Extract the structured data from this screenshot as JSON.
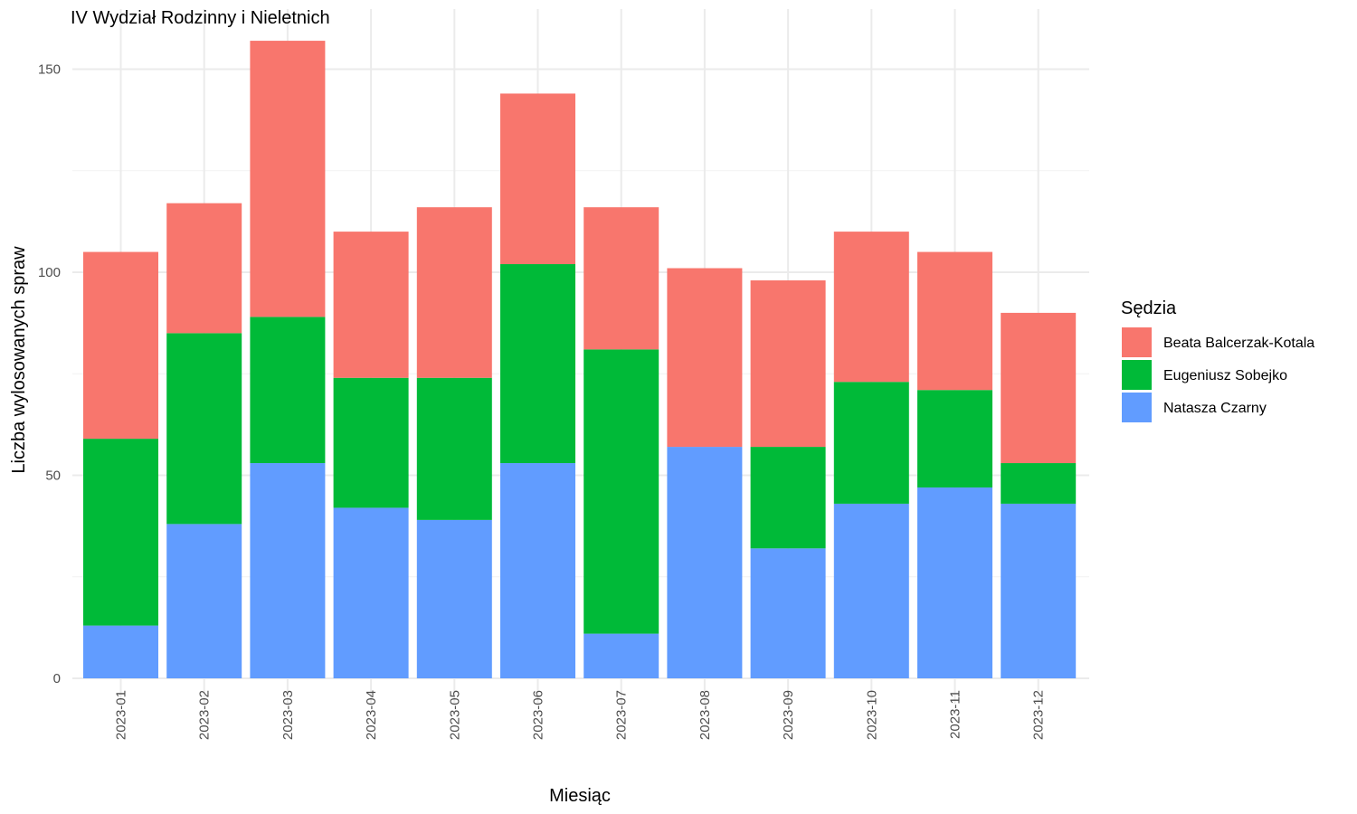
{
  "chart_data": {
    "type": "bar",
    "stacked": true,
    "title": "IV Wydział Rodzinny i Nieletnich",
    "xlabel": "Miesiąc",
    "ylabel": "Liczba wylosowanych spraw",
    "ylim": [
      0,
      160
    ],
    "yticks": [
      0,
      50,
      100,
      150
    ],
    "grid": true,
    "legend_title": "Sędzia",
    "legend_position": "right",
    "categories": [
      "2023-01",
      "2023-02",
      "2023-03",
      "2023-04",
      "2023-05",
      "2023-06",
      "2023-07",
      "2023-08",
      "2023-09",
      "2023-10",
      "2023-11",
      "2023-12"
    ],
    "series": [
      {
        "name": "Natasza Czarny",
        "color": "#619CFF",
        "values": [
          13,
          38,
          53,
          42,
          39,
          53,
          11,
          57,
          32,
          43,
          47,
          43
        ]
      },
      {
        "name": "Eugeniusz Sobejko",
        "color": "#00BA38",
        "values": [
          46,
          47,
          36,
          32,
          35,
          49,
          70,
          0,
          25,
          30,
          24,
          10
        ]
      },
      {
        "name": "Beata Balcerzak-Kotala",
        "color": "#F8766D",
        "values": [
          46,
          32,
          68,
          36,
          42,
          42,
          35,
          44,
          41,
          37,
          34,
          37
        ]
      }
    ],
    "legend_order": [
      "Beata Balcerzak-Kotala",
      "Eugeniusz Sobejko",
      "Natasza Czarny"
    ]
  }
}
